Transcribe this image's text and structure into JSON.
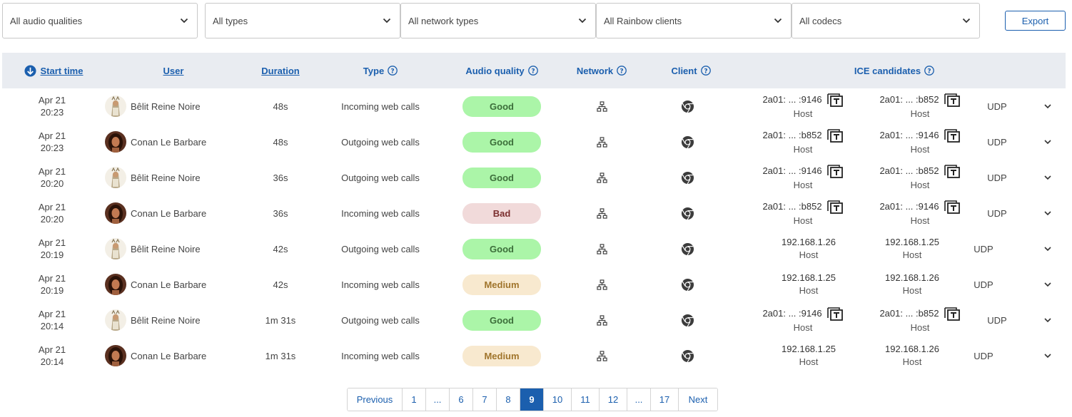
{
  "filters": [
    {
      "label": "All audio qualities"
    },
    {
      "label": "All types"
    },
    {
      "label": "All network types"
    },
    {
      "label": "All Rainbow clients"
    },
    {
      "label": "All codecs"
    }
  ],
  "export_label": "Export",
  "columns": {
    "start_time": "Start time",
    "user": "User",
    "duration": "Duration",
    "type": "Type",
    "audio_quality": "Audio quality",
    "network": "Network",
    "client": "Client",
    "ice": "ICE candidates"
  },
  "rows": [
    {
      "date": "Apr 21",
      "time": "20:23",
      "user": "Bêlit Reine Noire",
      "avatar": "belit",
      "duration": "48s",
      "type": "Incoming web calls",
      "quality": "Good",
      "quality_level": "good",
      "local_ip": "2a01: ... :9146",
      "local_type": "Host",
      "remote_ip": "2a01: ... :b852",
      "remote_type": "Host",
      "protocol": "UDP",
      "copyable": true
    },
    {
      "date": "Apr 21",
      "time": "20:23",
      "user": "Conan Le Barbare",
      "avatar": "conan",
      "duration": "48s",
      "type": "Outgoing web calls",
      "quality": "Good",
      "quality_level": "good",
      "local_ip": "2a01: ... :b852",
      "local_type": "Host",
      "remote_ip": "2a01: ... :9146",
      "remote_type": "Host",
      "protocol": "UDP",
      "copyable": true
    },
    {
      "date": "Apr 21",
      "time": "20:20",
      "user": "Bêlit Reine Noire",
      "avatar": "belit",
      "duration": "36s",
      "type": "Outgoing web calls",
      "quality": "Good",
      "quality_level": "good",
      "local_ip": "2a01: ... :9146",
      "local_type": "Host",
      "remote_ip": "2a01: ... :b852",
      "remote_type": "Host",
      "protocol": "UDP",
      "copyable": true
    },
    {
      "date": "Apr 21",
      "time": "20:20",
      "user": "Conan Le Barbare",
      "avatar": "conan",
      "duration": "36s",
      "type": "Incoming web calls",
      "quality": "Bad",
      "quality_level": "bad",
      "local_ip": "2a01: ... :b852",
      "local_type": "Host",
      "remote_ip": "2a01: ... :9146",
      "remote_type": "Host",
      "protocol": "UDP",
      "copyable": true
    },
    {
      "date": "Apr 21",
      "time": "20:19",
      "user": "Bêlit Reine Noire",
      "avatar": "belit",
      "duration": "42s",
      "type": "Outgoing web calls",
      "quality": "Good",
      "quality_level": "good",
      "local_ip": "192.168.1.26",
      "local_type": "Host",
      "remote_ip": "192.168.1.25",
      "remote_type": "Host",
      "protocol": "UDP",
      "copyable": false
    },
    {
      "date": "Apr 21",
      "time": "20:19",
      "user": "Conan Le Barbare",
      "avatar": "conan",
      "duration": "42s",
      "type": "Incoming web calls",
      "quality": "Medium",
      "quality_level": "medium",
      "local_ip": "192.168.1.25",
      "local_type": "Host",
      "remote_ip": "192.168.1.26",
      "remote_type": "Host",
      "protocol": "UDP",
      "copyable": false
    },
    {
      "date": "Apr 21",
      "time": "20:14",
      "user": "Bêlit Reine Noire",
      "avatar": "belit",
      "duration": "1m 31s",
      "type": "Outgoing web calls",
      "quality": "Good",
      "quality_level": "good",
      "local_ip": "2a01: ... :9146",
      "local_type": "Host",
      "remote_ip": "2a01: ... :b852",
      "remote_type": "Host",
      "protocol": "UDP",
      "copyable": true
    },
    {
      "date": "Apr 21",
      "time": "20:14",
      "user": "Conan Le Barbare",
      "avatar": "conan",
      "duration": "1m 31s",
      "type": "Incoming web calls",
      "quality": "Medium",
      "quality_level": "medium",
      "local_ip": "192.168.1.25",
      "local_type": "Host",
      "remote_ip": "192.168.1.26",
      "remote_type": "Host",
      "protocol": "UDP",
      "copyable": false
    }
  ],
  "pagination": {
    "previous": "Previous",
    "next": "Next",
    "pages": [
      "1",
      "...",
      "6",
      "7",
      "8",
      "9",
      "10",
      "11",
      "12",
      "...",
      "17"
    ],
    "current": "9"
  },
  "colors": {
    "accent": "#1b5fae",
    "header_bg": "#e9ecf1",
    "good": "#abf5a8",
    "bad": "#f1dada",
    "medium": "#f8e9cf"
  }
}
